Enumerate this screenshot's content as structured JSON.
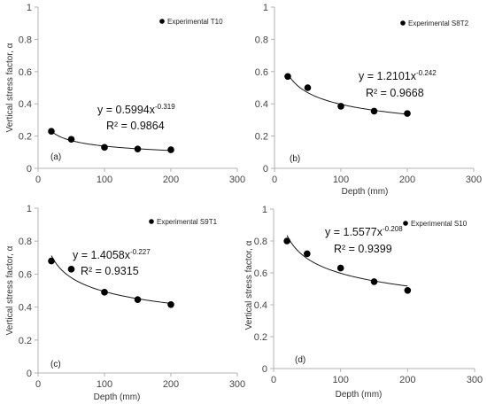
{
  "chart_data": [
    {
      "type": "scatter",
      "panel_label": "(a)",
      "legend": "Experimental T10",
      "x": [
        20,
        50,
        100,
        150,
        200
      ],
      "y": [
        0.23,
        0.18,
        0.13,
        0.12,
        0.115
      ],
      "trendline": {
        "a": 0.5994,
        "b": -0.319
      },
      "equation": "y = 0.5994x",
      "exponent": "-0.319",
      "r2": "R² = 0.9864",
      "xlabel": "",
      "ylabel": "Vertical stress factor, α",
      "xlim": [
        0,
        300
      ],
      "ylim": [
        0,
        1
      ],
      "xticks": [
        "0",
        "100",
        "200",
        "300"
      ],
      "yticks": [
        "0",
        "0.2",
        "0.4",
        "0.6",
        "0.8",
        "1"
      ]
    },
    {
      "type": "scatter",
      "panel_label": "(b)",
      "legend": "Experimental S8T2",
      "x": [
        20,
        50,
        100,
        150,
        200
      ],
      "y": [
        0.57,
        0.5,
        0.385,
        0.355,
        0.34
      ],
      "trendline": {
        "a": 1.2101,
        "b": -0.242
      },
      "equation": "y = 1.2101x",
      "exponent": "-0.242",
      "r2": "R² = 0.9668",
      "xlabel": "Depth (mm)",
      "ylabel": "",
      "xlim": [
        0,
        300
      ],
      "ylim": [
        0,
        1
      ],
      "xticks": [
        "0",
        "100",
        "200",
        "300"
      ],
      "yticks": [
        "0",
        "0.2",
        "0.4",
        "0.6",
        "0.8",
        "1"
      ]
    },
    {
      "type": "scatter",
      "panel_label": "(c)",
      "legend": "Experimental S9T1",
      "x": [
        20,
        50,
        100,
        150,
        200
      ],
      "y": [
        0.68,
        0.63,
        0.49,
        0.445,
        0.415
      ],
      "trendline": {
        "a": 1.4058,
        "b": -0.227
      },
      "equation": "y = 1.4058x",
      "exponent": "-0.227",
      "r2": "R² = 0.9315",
      "xlabel": "Depth (mm)",
      "ylabel": "Vertical stress factor, α",
      "xlim": [
        0,
        300
      ],
      "ylim": [
        0,
        1
      ],
      "xticks": [
        "0",
        "100",
        "200",
        "300"
      ],
      "yticks": [
        "0",
        "0.2",
        "0.4",
        "0.6",
        "0.8",
        "1"
      ]
    },
    {
      "type": "scatter",
      "panel_label": "(d)",
      "legend": "Experimental S10",
      "x": [
        20,
        50,
        100,
        150,
        200
      ],
      "y": [
        0.8,
        0.72,
        0.63,
        0.545,
        0.49
      ],
      "trendline": {
        "a": 1.5577,
        "b": -0.208
      },
      "equation": "y = 1.5577x",
      "exponent": "-0.208",
      "r2": "R² = 0.9399",
      "xlabel": "Depth (mm)",
      "ylabel": "Vertical stress factor, α",
      "xlim": [
        0,
        300
      ],
      "ylim": [
        0,
        1
      ],
      "xticks": [
        "0",
        "100",
        "200",
        "300"
      ],
      "yticks": [
        "0",
        "0.2",
        "0.4",
        "0.6",
        "0.8",
        "1"
      ]
    }
  ]
}
